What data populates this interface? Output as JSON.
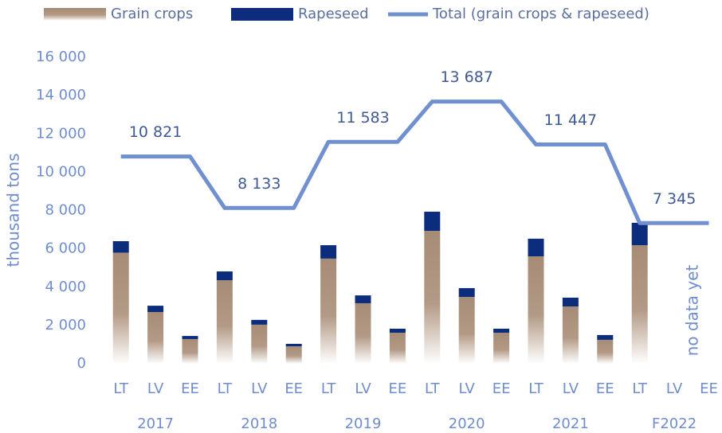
{
  "chart_data": {
    "type": "bar",
    "y_label": "thousand tons",
    "categories": [
      "LT",
      "LV",
      "EE",
      "LT",
      "LV",
      "EE",
      "LT",
      "LV",
      "EE",
      "LT",
      "LV",
      "EE",
      "LT",
      "LV",
      "EE",
      "LT",
      "LV",
      "EE"
    ],
    "groups": [
      "2017",
      "2018",
      "2019",
      "2020",
      "2021",
      "F2022"
    ],
    "series": [
      {
        "name": "Grain crops",
        "color": "#a68c76",
        "stacked": true,
        "values": [
          5800,
          2700,
          1290,
          4360,
          2040,
          910,
          5490,
          3160,
          1620,
          6940,
          3490,
          1620,
          5610,
          2990,
          1250,
          6190,
          null,
          null
        ]
      },
      {
        "name": "Rapeseed",
        "color": "#0b2d7c",
        "stacked": true,
        "values": [
          600,
          330,
          160,
          460,
          250,
          130,
          700,
          410,
          210,
          1000,
          460,
          210,
          920,
          460,
          250,
          1170,
          null,
          null
        ]
      },
      {
        "name": "Total (grain crops & rapeseed)",
        "color": "#7090cf",
        "type": "line",
        "values": [
          10821,
          10821,
          10821,
          8133,
          8133,
          8133,
          11583,
          11583,
          11583,
          13687,
          13687,
          13687,
          11447,
          11447,
          11447,
          7345,
          7345,
          7345
        ],
        "value_labels": [
          null,
          "10 821",
          null,
          null,
          "8 133",
          null,
          null,
          "11 583",
          null,
          null,
          "13 687",
          null,
          null,
          "11 447",
          null,
          null,
          "7 345",
          null
        ]
      }
    ],
    "annotation": "no data yet",
    "ylim": [
      0,
      16000
    ],
    "yticks": [
      0,
      {
        "value": 2000,
        "label": "2 000"
      },
      {
        "value": 4000,
        "label": "4 000"
      },
      {
        "value": 6000,
        "label": "6 000"
      },
      {
        "value": 8000,
        "label": "8 000"
      },
      {
        "value": 10000,
        "label": "10 000"
      },
      {
        "value": 12000,
        "label": "12 000"
      },
      {
        "value": 14000,
        "label": "14 000"
      },
      {
        "value": 16000,
        "label": "16 000"
      }
    ],
    "grid": false
  }
}
